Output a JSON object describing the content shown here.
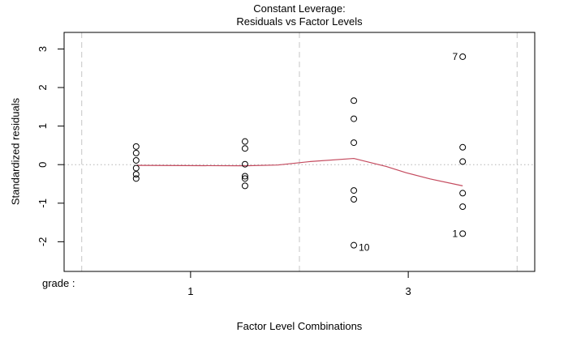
{
  "chart_data": {
    "type": "scatter",
    "title_line1": "Constant Leverage:",
    "title_line2": "Residuals vs Factor Levels",
    "xlabel": "Factor Level Combinations",
    "ylabel": "Standardized residuals",
    "factor_label": "grade :",
    "xlim": [
      0.338,
      4.662
    ],
    "ylim": [
      -2.77,
      3.43
    ],
    "y_ticks": [
      -2,
      -1,
      0,
      1,
      2,
      3
    ],
    "x_ticks": [
      {
        "x": 1.5,
        "label": "1"
      },
      {
        "x": 3.5,
        "label": "3"
      }
    ],
    "factor_boundaries_x": [
      0.5,
      2.5,
      4.5
    ],
    "zero_line_y": 0,
    "grid": "factor-boundaries-dashed, zero-line-dotted",
    "legend": "none",
    "groups": [
      {
        "x": 1,
        "values": [
          0.47,
          0.3,
          0.11,
          -0.09,
          -0.25,
          -0.36
        ]
      },
      {
        "x": 2,
        "values": [
          0.6,
          0.42,
          0.01,
          -0.3,
          -0.36,
          -0.55
        ]
      },
      {
        "x": 3,
        "values": [
          1.66,
          1.19,
          0.57,
          -0.67,
          -0.9,
          -2.09
        ]
      },
      {
        "x": 4,
        "values": [
          2.8,
          0.45,
          0.08,
          -0.74,
          -1.09,
          -1.79
        ]
      }
    ],
    "point_labels": [
      {
        "text": "7",
        "x": 4,
        "y": 2.8,
        "side": "left"
      },
      {
        "text": "10",
        "x": 3,
        "y": -2.09,
        "side": "right"
      },
      {
        "text": "1",
        "x": 4,
        "y": -1.79,
        "side": "left"
      }
    ],
    "smooth_line_points": [
      [
        1,
        -0.02
      ],
      [
        2,
        -0.03
      ],
      [
        2.3,
        -0.01
      ],
      [
        2.6,
        0.08
      ],
      [
        3,
        0.16
      ],
      [
        3.3,
        -0.05
      ],
      [
        3.48,
        -0.21
      ],
      [
        3.7,
        -0.37
      ],
      [
        4,
        -0.55
      ]
    ],
    "colors": {
      "smooth_line": "#c44a5e",
      "boundary_gridline": "#c4c4c4",
      "zero_line": "#b4b4b4",
      "points": "#000000",
      "box": "#000000",
      "text": "#000000"
    }
  }
}
